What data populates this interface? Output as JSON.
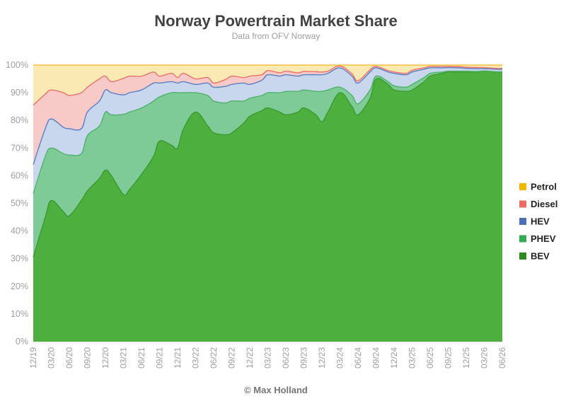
{
  "chart_data": {
    "type": "area",
    "stacked": true,
    "title": "Norway Powertrain Market Share",
    "subtitle": "Data from OFV Norway",
    "credit": "© Max Holland",
    "ylim": [
      0,
      100
    ],
    "yticks": [
      "0%",
      "10%",
      "20%",
      "30%",
      "40%",
      "50%",
      "60%",
      "70%",
      "80%",
      "90%",
      "100%"
    ],
    "xtick_labels": [
      "12/19",
      "03/20",
      "06/20",
      "09/20",
      "12/20",
      "03/21",
      "06/21",
      "09/21",
      "12/21",
      "03/22",
      "06/22",
      "09/22",
      "12/22",
      "03/23",
      "06/23",
      "09/23",
      "12/23",
      "03/24",
      "06/24",
      "09/24",
      "12/24",
      "03/25",
      "06/25",
      "09/25",
      "12/25",
      "03/26",
      "06/26"
    ],
    "legend_position": "right",
    "x": [
      "12/19",
      "02/20",
      "03/20",
      "05/20",
      "06/20",
      "08/20",
      "09/20",
      "11/20",
      "12/20",
      "01/21",
      "03/21",
      "04/21",
      "06/21",
      "08/21",
      "09/21",
      "11/21",
      "12/21",
      "01/22",
      "03/22",
      "05/22",
      "06/22",
      "08/22",
      "09/22",
      "11/22",
      "12/22",
      "02/23",
      "03/23",
      "05/23",
      "06/23",
      "08/23",
      "09/23",
      "11/23",
      "12/23",
      "01/24",
      "03/24",
      "05/24",
      "06/24",
      "08/24",
      "09/24",
      "11/24",
      "12/24",
      "02/25",
      "03/25",
      "05/25",
      "06/25",
      "08/25",
      "09/25",
      "11/25",
      "12/25",
      "02/26",
      "03/26",
      "05/26",
      "06/26"
    ],
    "series": [
      {
        "name": "BEV",
        "color": "#4caf3e",
        "values": [
          30.5,
          45,
          51,
          47,
          45.5,
          51,
          54.5,
          59,
          62,
          60,
          53.2,
          55,
          60.5,
          67,
          72.5,
          71,
          70,
          77,
          83,
          78,
          75.5,
          74.8,
          75.5,
          79,
          81.5,
          83.5,
          84.5,
          83,
          82,
          83,
          84.5,
          82,
          79.5,
          83,
          90,
          85,
          82,
          88,
          95,
          93,
          91,
          90.5,
          91,
          94,
          96,
          97,
          97.5,
          97.5,
          97.5,
          97.5,
          97.8,
          97.5,
          97.5
        ]
      },
      {
        "name": "PHEV",
        "color": "#7ecb98",
        "values": [
          23,
          22,
          19,
          21,
          22,
          17,
          20,
          19,
          21,
          22,
          29,
          28,
          24,
          20,
          16,
          19,
          20,
          13,
          7,
          11,
          11.5,
          11.5,
          11.5,
          8,
          6.5,
          5.5,
          5.5,
          7,
          8.5,
          7.5,
          6.5,
          8.5,
          11,
          8,
          2,
          4,
          4,
          3,
          1,
          1,
          1.5,
          1.5,
          2,
          1.5,
          1,
          0.5,
          0.3,
          0.3,
          0.3,
          0.2,
          0.1,
          0.1,
          0.1
        ]
      },
      {
        "name": "HEV",
        "color": "#c9d7ee",
        "values": [
          10.5,
          10,
          10.5,
          9.5,
          9.5,
          9,
          8.5,
          9,
          8,
          8,
          7,
          7,
          6.5,
          6.5,
          5,
          4,
          3.5,
          4,
          3,
          4.5,
          5,
          6,
          6,
          6.5,
          5,
          5.5,
          6.5,
          6,
          6,
          5.5,
          5.5,
          6,
          6,
          6,
          7,
          7,
          7.5,
          6.5,
          3,
          3.5,
          4.5,
          4.5,
          4.5,
          3,
          2,
          1.5,
          1.3,
          1.2,
          1,
          1,
          0.8,
          0.9,
          0.9
        ]
      },
      {
        "name": "Diesel",
        "color": "#f7c9c7",
        "values": [
          21.5,
          12.5,
          10.5,
          12.5,
          12,
          13,
          9,
          8,
          5,
          4,
          6,
          6,
          5,
          4,
          2.5,
          3,
          2,
          3,
          2,
          2,
          1.5,
          2.5,
          3,
          2,
          3,
          2,
          1.5,
          1.2,
          1.3,
          1.2,
          1.2,
          1.1,
          1,
          0.8,
          0.7,
          0.8,
          0.8,
          0.8,
          0.5,
          0.5,
          0.5,
          0.5,
          0.6,
          0.5,
          0.5,
          0.5,
          0.4,
          0.4,
          0.4,
          0.4,
          0.4,
          0.3,
          0.3
        ]
      },
      {
        "name": "Petrol",
        "color": "#fbe9b4",
        "values": [
          14.5,
          10.5,
          9,
          10,
          11,
          10,
          8,
          5,
          4,
          6,
          4.8,
          4,
          4,
          2.5,
          4,
          3,
          4.5,
          3,
          5,
          4.5,
          6.5,
          5.2,
          4,
          4.5,
          4,
          3.5,
          2,
          2.8,
          2.2,
          2.8,
          2.3,
          2.4,
          2.5,
          2.2,
          0.3,
          3.2,
          5.7,
          1.7,
          0.5,
          2,
          2.5,
          3.5,
          1.9,
          1,
          0.5,
          0.5,
          0.5,
          0.6,
          0.8,
          0.9,
          0.9,
          1.2,
          1.2
        ]
      }
    ],
    "legend": [
      {
        "label": "Petrol",
        "swatch": "#f2b705"
      },
      {
        "label": "Diesel",
        "swatch": "#e86c63"
      },
      {
        "label": "HEV",
        "swatch": "#4c6fb5"
      },
      {
        "label": "PHEV",
        "swatch": "#33aa55"
      },
      {
        "label": "BEV",
        "swatch": "#2e8b1e"
      }
    ],
    "line_colors": {
      "BEV": "#3b9a2e",
      "PHEV": "#4fb36b",
      "HEV": "#5b80c4",
      "Diesel": "#e8736b",
      "Petrol": "#f0c040"
    }
  }
}
